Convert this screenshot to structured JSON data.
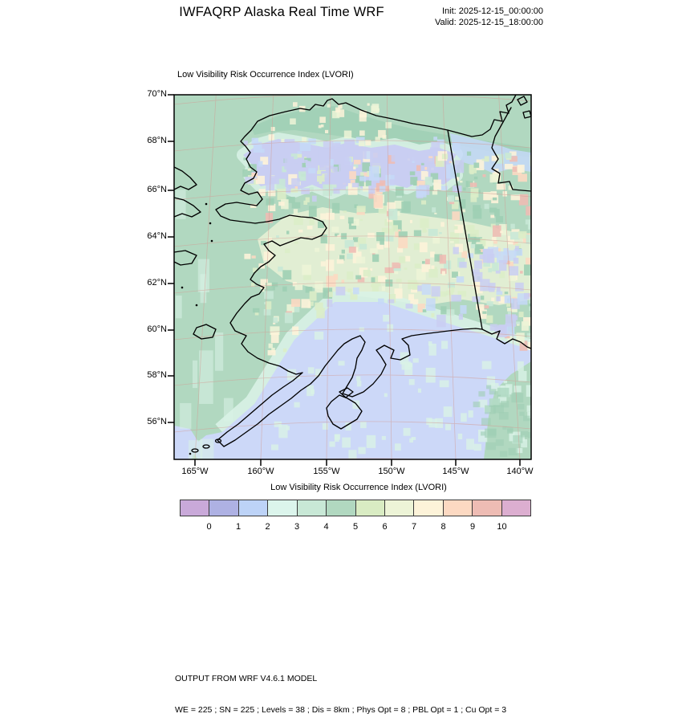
{
  "header": {
    "title": "IWFAQRP Alaska Real Time WRF",
    "init": "Init: 2025-12-15_00:00:00",
    "valid": "Valid: 2025-12-15_18:00:00"
  },
  "plot": {
    "field_title": "Low Visibility Risk Occurrence Index   (LVORI)"
  },
  "chart_data": {
    "type": "heatmap",
    "title": "Low Visibility Risk Occurrence Index (LVORI)",
    "region": "Alaska WRF domain",
    "y_axis": {
      "kind": "latitude",
      "ticks": [
        "70°N",
        "68°N",
        "66°N",
        "64°N",
        "62°N",
        "60°N",
        "58°N",
        "56°N"
      ]
    },
    "x_axis": {
      "kind": "longitude",
      "ticks": [
        "165°W",
        "160°W",
        "155°W",
        "150°W",
        "145°W",
        "140°W"
      ]
    },
    "colorbar": {
      "title": "Low Visibility Risk Occurrence Index  (LVORI)",
      "ticks": [
        "0",
        "1",
        "2",
        "3",
        "4",
        "5",
        "6",
        "7",
        "8",
        "9",
        "10"
      ],
      "colors": [
        "#c9a9d9",
        "#aeb1e3",
        "#bdd3f7",
        "#dcf5ec",
        "#c8e8d6",
        "#b1d8c0",
        "#d9ecc3",
        "#edf4d7",
        "#fdf3d9",
        "#fcd9c2",
        "#eebcb4",
        "#dcaed0"
      ]
    },
    "field_summary": {
      "western_ocean": 4.5,
      "gulf_of_alaska": 1.5,
      "north_slope": 1.5,
      "interior_mottled_range": [
        3,
        10
      ]
    },
    "map_colors": {
      "base_green": "#b1d8c0",
      "gulf_lavender": "#ccd8f8",
      "slope_lavender": "#c9cef2",
      "light_blue": "#c6d9f8",
      "pale_mint": "#d9f2e6",
      "mint_green": "#c8e8d6",
      "yellow_green": "#dcedc8",
      "pale_yellow_green": "#edf4d7",
      "cream": "#fdf3d9",
      "peach": "#fcd9c2",
      "salmon": "#eebcb4",
      "dark_green": "#9ecfb4",
      "coastline": "#000000",
      "graticule": "#d29c94",
      "frame": "#000000"
    }
  },
  "footer": {
    "line1": "OUTPUT FROM WRF V4.6.1 MODEL",
    "line2": "WE = 225 ; SN = 225 ; Levels = 38 ; Dis = 8km ; Phys Opt = 8 ; PBL Opt = 1 ; Cu Opt = 3"
  }
}
